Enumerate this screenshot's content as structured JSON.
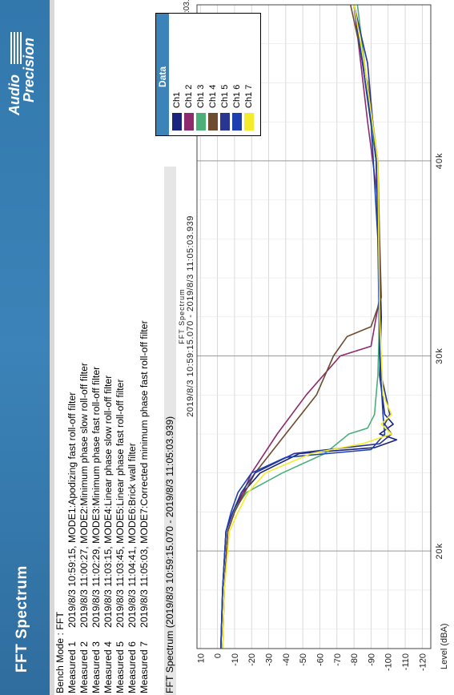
{
  "header": {
    "title": "FFT Spectrum",
    "logo_line1": "Audio",
    "logo_line2": "Precision"
  },
  "info": {
    "bench_mode": "Bench Mode : FFT",
    "measured": [
      {
        "label": "Measured 1",
        "text": "2019/8/3 10:59:15, MODE1:Apodizing fast roll-off filter"
      },
      {
        "label": "Measured 2",
        "text": "2019/8/3 11:00:27, MODE2:Minimum phase slow roll-off filter"
      },
      {
        "label": "Measured 3",
        "text": "2019/8/3 11:02:29, MODE3:Minimum phase fast roll-off filter"
      },
      {
        "label": "Measured 4",
        "text": "2019/8/3 11:03:15, MODE4:Linear phase slow roll-off filter"
      },
      {
        "label": "Measured 5",
        "text": "2019/8/3 11:03:45, MODE5:Linear phase fast roll-off filter"
      },
      {
        "label": "Measured 6",
        "text": "2019/8/3 11:04:41, MODE6:Brick wall filter"
      },
      {
        "label": "Measured 7",
        "text": "2019/8/3 11:05:03, MODE7:Corrected minimum phase fast roll-off filter"
      }
    ]
  },
  "chart_header": "FFT Spectrum (2019/8/3 10:59:15.070 - 2019/8/3 11:05:03.939)",
  "chart_data": {
    "type": "line",
    "title": "FFT Spectrum",
    "subtitle": "2019/8/3 10:59:15.070 - 2019/8/3 11:05:03.939",
    "ylabel": "Level (dBA)",
    "xlabel": "",
    "xlim": [
      15000,
      48000
    ],
    "ylim": [
      -125,
      12
    ],
    "yticks": [
      10,
      0,
      -10,
      -20,
      -30,
      -40,
      -50,
      -60,
      -70,
      -80,
      -90,
      -100,
      -110,
      -120
    ],
    "xticks": [
      {
        "value": 20000,
        "label": "20k"
      },
      {
        "value": 30000,
        "label": "30k"
      },
      {
        "value": 40000,
        "label": "40k"
      }
    ],
    "grid": true,
    "legend_title": "Data",
    "legend_position": "top-right",
    "series": [
      {
        "name": "Ch1",
        "color": "#1a237e",
        "x": [
          15000,
          18000,
          21000,
          22000,
          23000,
          24000,
          25000,
          25300,
          25700,
          26000,
          26500,
          27000,
          29000,
          32000,
          35000,
          40000,
          45000,
          48000
        ],
        "y": [
          -2,
          -3,
          -5,
          -9,
          -15,
          -25,
          -48,
          -92,
          -105,
          -95,
          -103,
          -98,
          -95,
          -96,
          -95,
          -93,
          -85,
          -80
        ]
      },
      {
        "name": "Ch1 2",
        "color": "#8e2a6e",
        "x": [
          15000,
          18000,
          21000,
          22000,
          24000,
          26000,
          28000,
          30000,
          30500,
          33000,
          38000,
          42000,
          45000,
          48000
        ],
        "y": [
          -3,
          -4,
          -6,
          -10,
          -20,
          -35,
          -52,
          -72,
          -90,
          -95,
          -94,
          -88,
          -84,
          -80
        ]
      },
      {
        "name": "Ch1 3",
        "color": "#4caf7a",
        "x": [
          15000,
          18000,
          21000,
          22000,
          23000,
          24000,
          25000,
          26000,
          26300,
          27000,
          29000,
          32000,
          40000,
          48000
        ],
        "y": [
          -2,
          -3,
          -5,
          -9,
          -17,
          -38,
          -63,
          -77,
          -88,
          -92,
          -94,
          -95,
          -93,
          -82
        ]
      },
      {
        "name": "Ch1 4",
        "color": "#6d4c2f",
        "x": [
          15000,
          18000,
          21000,
          22000,
          24000,
          26000,
          28000,
          30000,
          31000,
          31500,
          33000,
          36000,
          40000,
          44000,
          48000
        ],
        "y": [
          -3,
          -4,
          -6,
          -10,
          -22,
          -40,
          -58,
          -68,
          -76,
          -90,
          -96,
          -95,
          -94,
          -88,
          -78
        ]
      },
      {
        "name": "Ch1 5",
        "color": "#283593",
        "x": [
          15000,
          18000,
          21000,
          22000,
          23000,
          24000,
          25000,
          25500,
          26000,
          26500,
          27000,
          29000,
          33000,
          40000,
          45000,
          48000
        ],
        "y": [
          -2,
          -3,
          -5,
          -9,
          -14,
          -22,
          -45,
          -95,
          -102,
          -98,
          -101,
          -96,
          -95,
          -93,
          -88,
          -80
        ]
      },
      {
        "name": "Ch1 6",
        "color": "#1e3fb0",
        "x": [
          15000,
          18000,
          21000,
          22000,
          23000,
          24000,
          24800,
          25200,
          26000,
          27000,
          30000,
          36000,
          42000,
          48000
        ],
        "y": [
          -2,
          -3,
          -5,
          -8,
          -12,
          -20,
          -40,
          -90,
          -98,
          -97,
          -95,
          -94,
          -90,
          -80
        ]
      },
      {
        "name": "Ch1 7",
        "color": "#f4ec2a",
        "x": [
          15000,
          18000,
          21000,
          22000,
          23000,
          24000,
          25000,
          25500,
          26000,
          26500,
          27000,
          28000,
          32000,
          40000,
          45000,
          48000
        ],
        "y": [
          -3,
          -4,
          -7,
          -12,
          -18,
          -28,
          -55,
          -85,
          -102,
          -96,
          -102,
          -97,
          -95,
          -94,
          -86,
          -80
        ]
      }
    ],
    "timestamp": "2019/8/3 11:05:03.939"
  }
}
